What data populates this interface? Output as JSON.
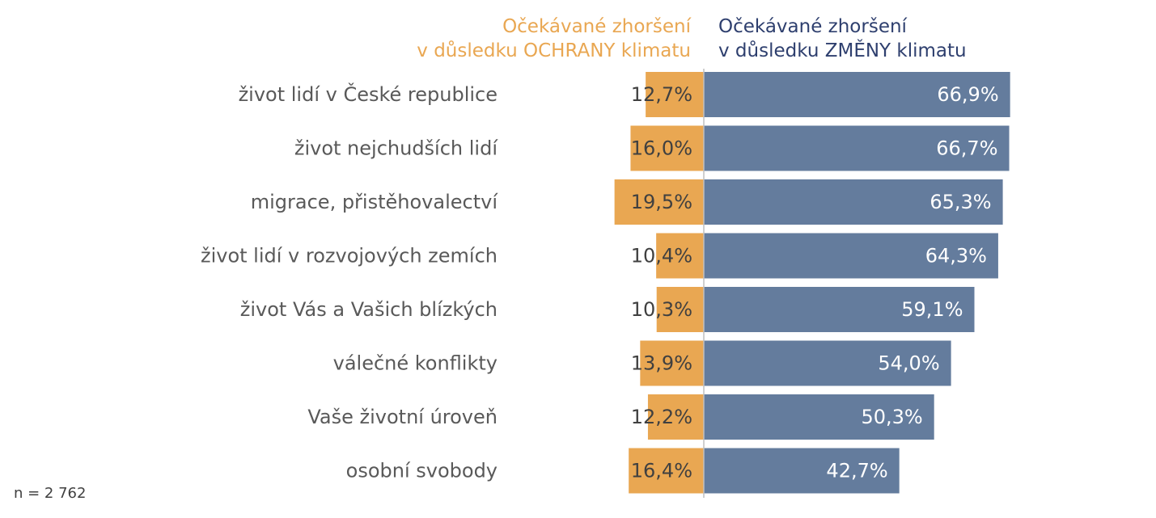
{
  "chart_data": {
    "type": "bar",
    "orientation": "horizontal",
    "layout": "diverging",
    "categories": [
      "život lidí v České republice",
      "život nejchudších lidí",
      "migrace, přistěhovalectví",
      "život lidí v rozvojových zemích",
      "život Vás a Vašich blízkých",
      "válečné konflikty",
      "Vaše životní úroveň",
      "osobní svobody"
    ],
    "series": [
      {
        "name": "Očekávané zhoršení v důsledku OCHRANY klimatu",
        "name_lines": [
          "Očekávané zhoršení",
          "v důsledku OCHRANY klimatu"
        ],
        "color": "#E9A752",
        "direction": "left",
        "values": [
          12.7,
          16.0,
          19.5,
          10.4,
          10.3,
          13.9,
          12.2,
          16.4
        ],
        "labels": [
          "12,7%",
          "16,0%",
          "19,5%",
          "10,4%",
          "10,3%",
          "13,9%",
          "12,2%",
          "16,4%"
        ]
      },
      {
        "name": "Očekávané zhoršení v důsledku ZMĚNY klimatu",
        "name_lines": [
          "Očekávané zhoršení",
          "v důsledku ZMĚNY klimatu"
        ],
        "color": "#647C9D",
        "direction": "right",
        "values": [
          66.9,
          66.7,
          65.3,
          64.3,
          59.1,
          54.0,
          50.3,
          42.7
        ],
        "labels": [
          "66,9%",
          "66,7%",
          "65,3%",
          "64,3%",
          "59,1%",
          "54,0%",
          "50,3%",
          "42,7%"
        ]
      }
    ],
    "unit": "%",
    "grid": false,
    "legend": "top-center",
    "xlim": [
      0,
      100
    ],
    "note": "n = 2 762"
  },
  "colors": {
    "left_header": "#E9A752",
    "right_header": "#2E3F6E",
    "axis": "#BFBFBF"
  }
}
